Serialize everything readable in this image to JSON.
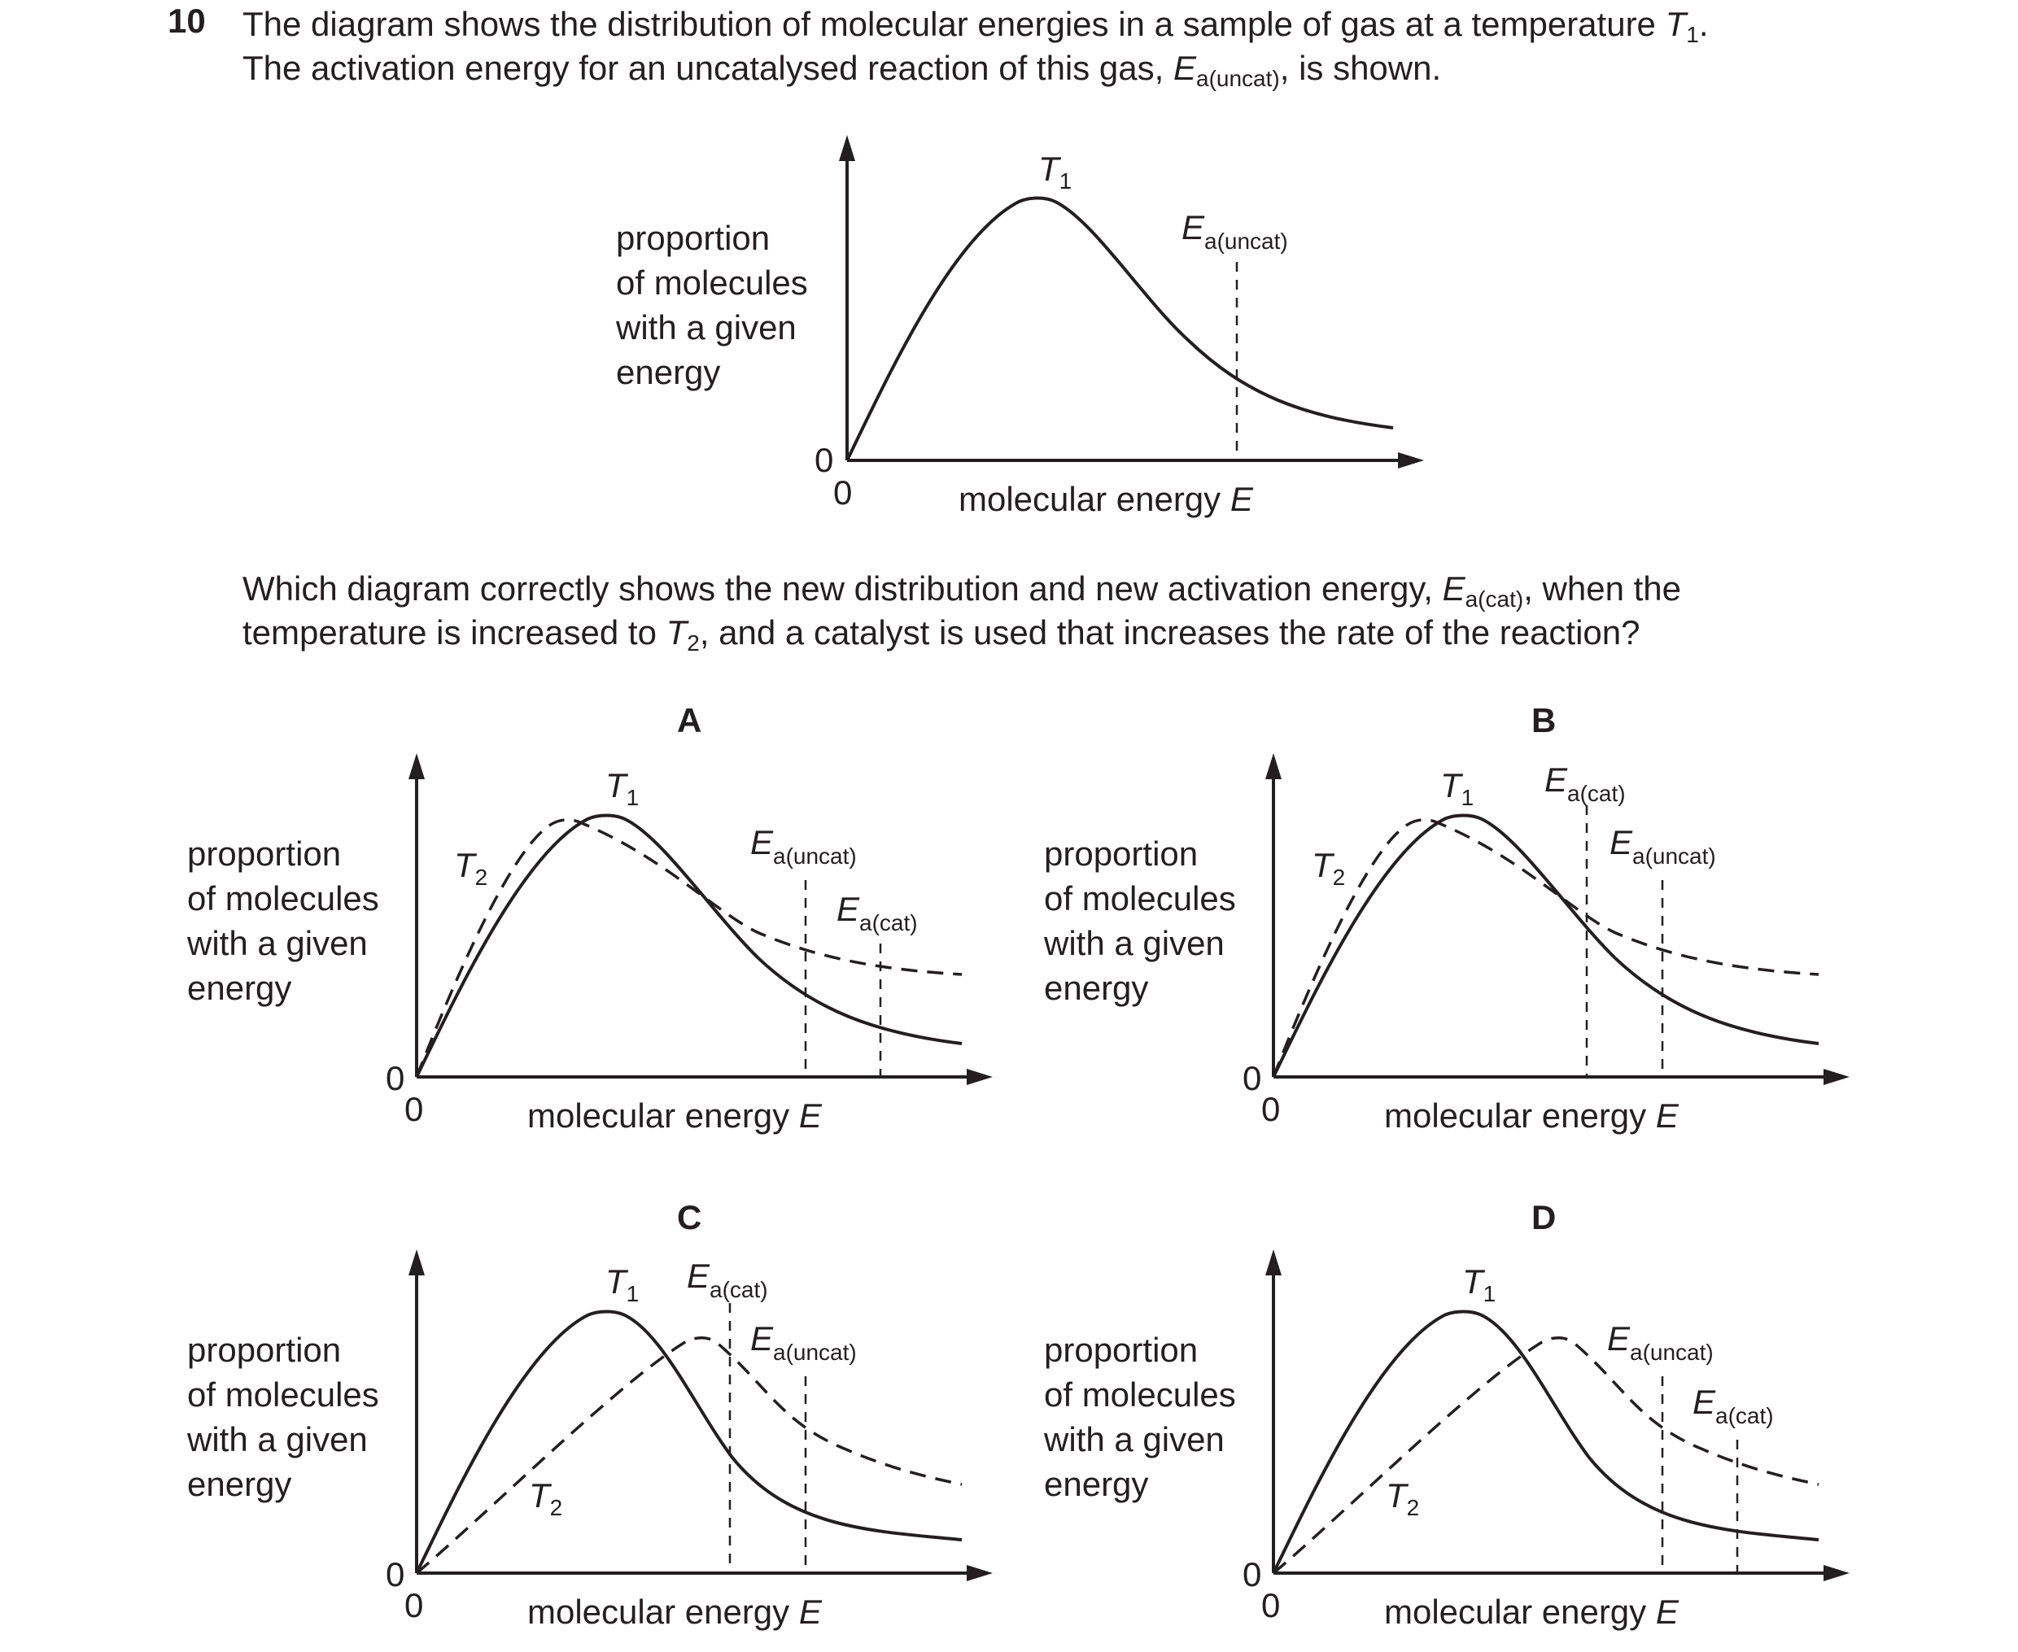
{
  "question": {
    "number": "10",
    "stem_line1_a": "The diagram shows the distribution of molecular energies in a sample of gas at a temperature ",
    "stem_line1_var": "T",
    "stem_line1_sub": "1",
    "stem_line1_end": ".",
    "stem_line2_a": "The activation energy for an uncatalysed reaction of this gas, ",
    "stem_line2_var": "E",
    "stem_line2_sub": "a(uncat)",
    "stem_line2_end": ", is shown.",
    "prompt_line1_a": "Which diagram correctly shows the new distribution and new activation energy, ",
    "prompt_line1_var": "E",
    "prompt_line1_sub": "a(cat)",
    "prompt_line1_end": ", when the",
    "prompt_line2_a": "temperature is increased to ",
    "prompt_line2_var": "T",
    "prompt_line2_sub": "2",
    "prompt_line2_end": ", and a catalyst is used that increases the rate of the reaction?"
  },
  "axes": {
    "ylabel_lines": [
      "proportion",
      "of molecules",
      "with a given",
      "energy"
    ],
    "xlabel_text": "molecular energy ",
    "xlabel_var": "E",
    "origin_x": "0",
    "origin_y": "0"
  },
  "labels": {
    "T": "T",
    "t1_sub": "1",
    "t2_sub": "2",
    "E": "E",
    "uncat_sub": "a(uncat)",
    "cat_sub": "a(cat)"
  },
  "options": {
    "A": "A",
    "B": "B",
    "C": "C",
    "D": "D"
  },
  "line_styles": {
    "T1": "solid",
    "T2": "dashed",
    "activation_energy_markers": "dashed"
  }
}
